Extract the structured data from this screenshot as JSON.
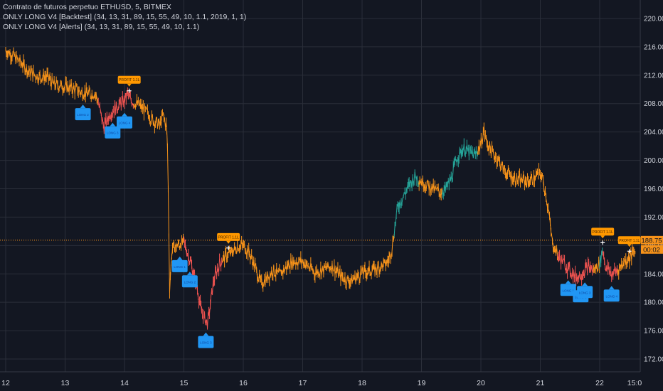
{
  "legend": {
    "symbol_line": "Contrato de futuros perpetuo ETHUSD, 5, BITMEX",
    "study_backtest": "ONLY LONG V4 [Backtest] (34, 13, 31, 89, 15, 55, 49, 10, 1.1, 2019, 1, 1)",
    "study_alerts": "ONLY LONG V4 [Alerts] (34, 13, 31, 89, 15, 55, 49, 10, 1.1)"
  },
  "colors": {
    "background": "#131722",
    "grid": "#2a2e39",
    "text": "#d1d4dc",
    "price_orange": "#f7931a",
    "bull_green": "#26a69a",
    "bear_red": "#ef5350",
    "buy_label_blue": "#2196f3",
    "profit_label_orange": "#ff9800"
  },
  "chart_data": {
    "type": "line",
    "title": "Contrato de futuros perpetuo ETHUSD, 5, BITMEX",
    "ylim": [
      170.2,
      222.6
    ],
    "y_ticks": [
      "172.00",
      "176.00",
      "180.00",
      "184.00",
      "188.00",
      "192.00",
      "196.00",
      "200.00",
      "204.00",
      "208.00",
      "212.00",
      "216.00",
      "220.00"
    ],
    "y_tick_values": [
      172,
      176,
      180,
      184,
      188,
      192,
      196,
      200,
      204,
      208,
      212,
      216,
      220
    ],
    "x_tick_labels": [
      "12",
      "13",
      "14",
      "15",
      "16",
      "17",
      "18",
      "19",
      "20",
      "21",
      "22"
    ],
    "x_tick_days": [
      12,
      13,
      14,
      15,
      16,
      17,
      18,
      19,
      20,
      21,
      22
    ],
    "x_end_label": "15:0",
    "grid": true,
    "series": [
      {
        "values_x_days": [
          12.0,
          12.1,
          12.25,
          12.4,
          12.55,
          12.7,
          12.8,
          12.95,
          13.1,
          13.25,
          13.4,
          13.5,
          13.55,
          13.6,
          13.65,
          13.7,
          13.75,
          13.8,
          13.9,
          14.0,
          14.05,
          14.1,
          14.2,
          14.3,
          14.4,
          14.5,
          14.6,
          14.65,
          14.7,
          14.72,
          14.74,
          14.76,
          14.8,
          14.83,
          14.9,
          15.0,
          15.1,
          15.2,
          15.3,
          15.4,
          15.45,
          15.5,
          15.6,
          15.7,
          15.8,
          15.9,
          16.0,
          16.1,
          16.2,
          16.3,
          16.4,
          16.5,
          16.6,
          16.7,
          16.8,
          16.9,
          17.0,
          17.1,
          17.2,
          17.3,
          17.4,
          17.5,
          17.6,
          17.7,
          17.8,
          17.9,
          18.0,
          18.1,
          18.2,
          18.3,
          18.4,
          18.45,
          18.5,
          18.55,
          18.6,
          18.7,
          18.8,
          18.9,
          19.0,
          19.1,
          19.2,
          19.3,
          19.4,
          19.5,
          19.6,
          19.7,
          19.8,
          19.9,
          20.0,
          20.05,
          20.1,
          20.2,
          20.3,
          20.4,
          20.5,
          20.6,
          20.7,
          20.8,
          20.9,
          21.0,
          21.05,
          21.1,
          21.15,
          21.2,
          21.25,
          21.3,
          21.4,
          21.5,
          21.6,
          21.7,
          21.8,
          21.9,
          22.0,
          22.05,
          22.1,
          22.2,
          22.3,
          22.4,
          22.5,
          22.6
        ],
        "values_y": [
          215.5,
          215.0,
          213.8,
          212.5,
          211.8,
          211.8,
          210.7,
          210.5,
          210.2,
          209.7,
          209.3,
          209.5,
          208.5,
          206.5,
          204.8,
          205.5,
          206.5,
          207.0,
          207.8,
          208.4,
          209.5,
          208.5,
          208.0,
          207.4,
          206.5,
          205.5,
          205.0,
          206.4,
          205.0,
          203.5,
          194.3,
          182.0,
          187.5,
          187.8,
          188.0,
          188.5,
          186.0,
          183.0,
          178.5,
          177.0,
          180.0,
          183.0,
          185.5,
          186.5,
          187.0,
          187.8,
          188.0,
          187.0,
          185.0,
          182.5,
          183.5,
          184.5,
          183.8,
          184.7,
          185.6,
          185.8,
          185.8,
          185.0,
          184.2,
          184.5,
          184.8,
          185.1,
          184.0,
          183.3,
          183.0,
          183.5,
          184.2,
          184.4,
          184.6,
          185.0,
          185.4,
          186.0,
          187.5,
          190.5,
          193.5,
          195.0,
          196.6,
          197.8,
          197.0,
          196.5,
          196.0,
          195.5,
          195.8,
          197.4,
          200.4,
          201.7,
          201.2,
          200.7,
          202.3,
          204.2,
          202.5,
          201.0,
          200.0,
          198.5,
          197.8,
          197.3,
          197.2,
          197.0,
          197.5,
          198.3,
          197.0,
          195.0,
          192.0,
          188.5,
          187.5,
          186.5,
          185.5,
          184.5,
          183.5,
          184.0,
          185.0,
          184.5,
          185.5,
          187.5,
          185.0,
          184.0,
          184.5,
          185.6,
          186.3,
          187.2
        ]
      }
    ],
    "current_price_line": 188.75,
    "price_label": "188.75",
    "countdown_label": "00:02",
    "markers": [
      {
        "kind": "buy",
        "day": 13.3,
        "label": "LONG 2"
      },
      {
        "kind": "buy",
        "day": 13.8,
        "label": "LONG 3"
      },
      {
        "kind": "buy",
        "day": 14.0,
        "label": "LONG 4"
      },
      {
        "kind": "profit",
        "day": 14.08,
        "label": "PROFIT 1.1L"
      },
      {
        "kind": "buy",
        "day": 14.93,
        "label": "LONG 1"
      },
      {
        "kind": "buy",
        "day": 15.1,
        "label": "LONG 2"
      },
      {
        "kind": "buy",
        "day": 15.37,
        "label": "LONG 3"
      },
      {
        "kind": "profit",
        "day": 15.75,
        "label": "PROFIT 1.1L"
      },
      {
        "kind": "buy",
        "day": 21.47,
        "label": "LONG 1"
      },
      {
        "kind": "buy",
        "day": 21.68,
        "label": "LONG 2"
      },
      {
        "kind": "buy",
        "day": 21.75,
        "label": "LONG 3"
      },
      {
        "kind": "profit",
        "day": 22.05,
        "label": "PROFIT 1.1L"
      },
      {
        "kind": "buy",
        "day": 22.2,
        "label": "LONG 4"
      },
      {
        "kind": "profit",
        "day": 22.5,
        "label": "PROFIT 1.1L"
      }
    ]
  }
}
